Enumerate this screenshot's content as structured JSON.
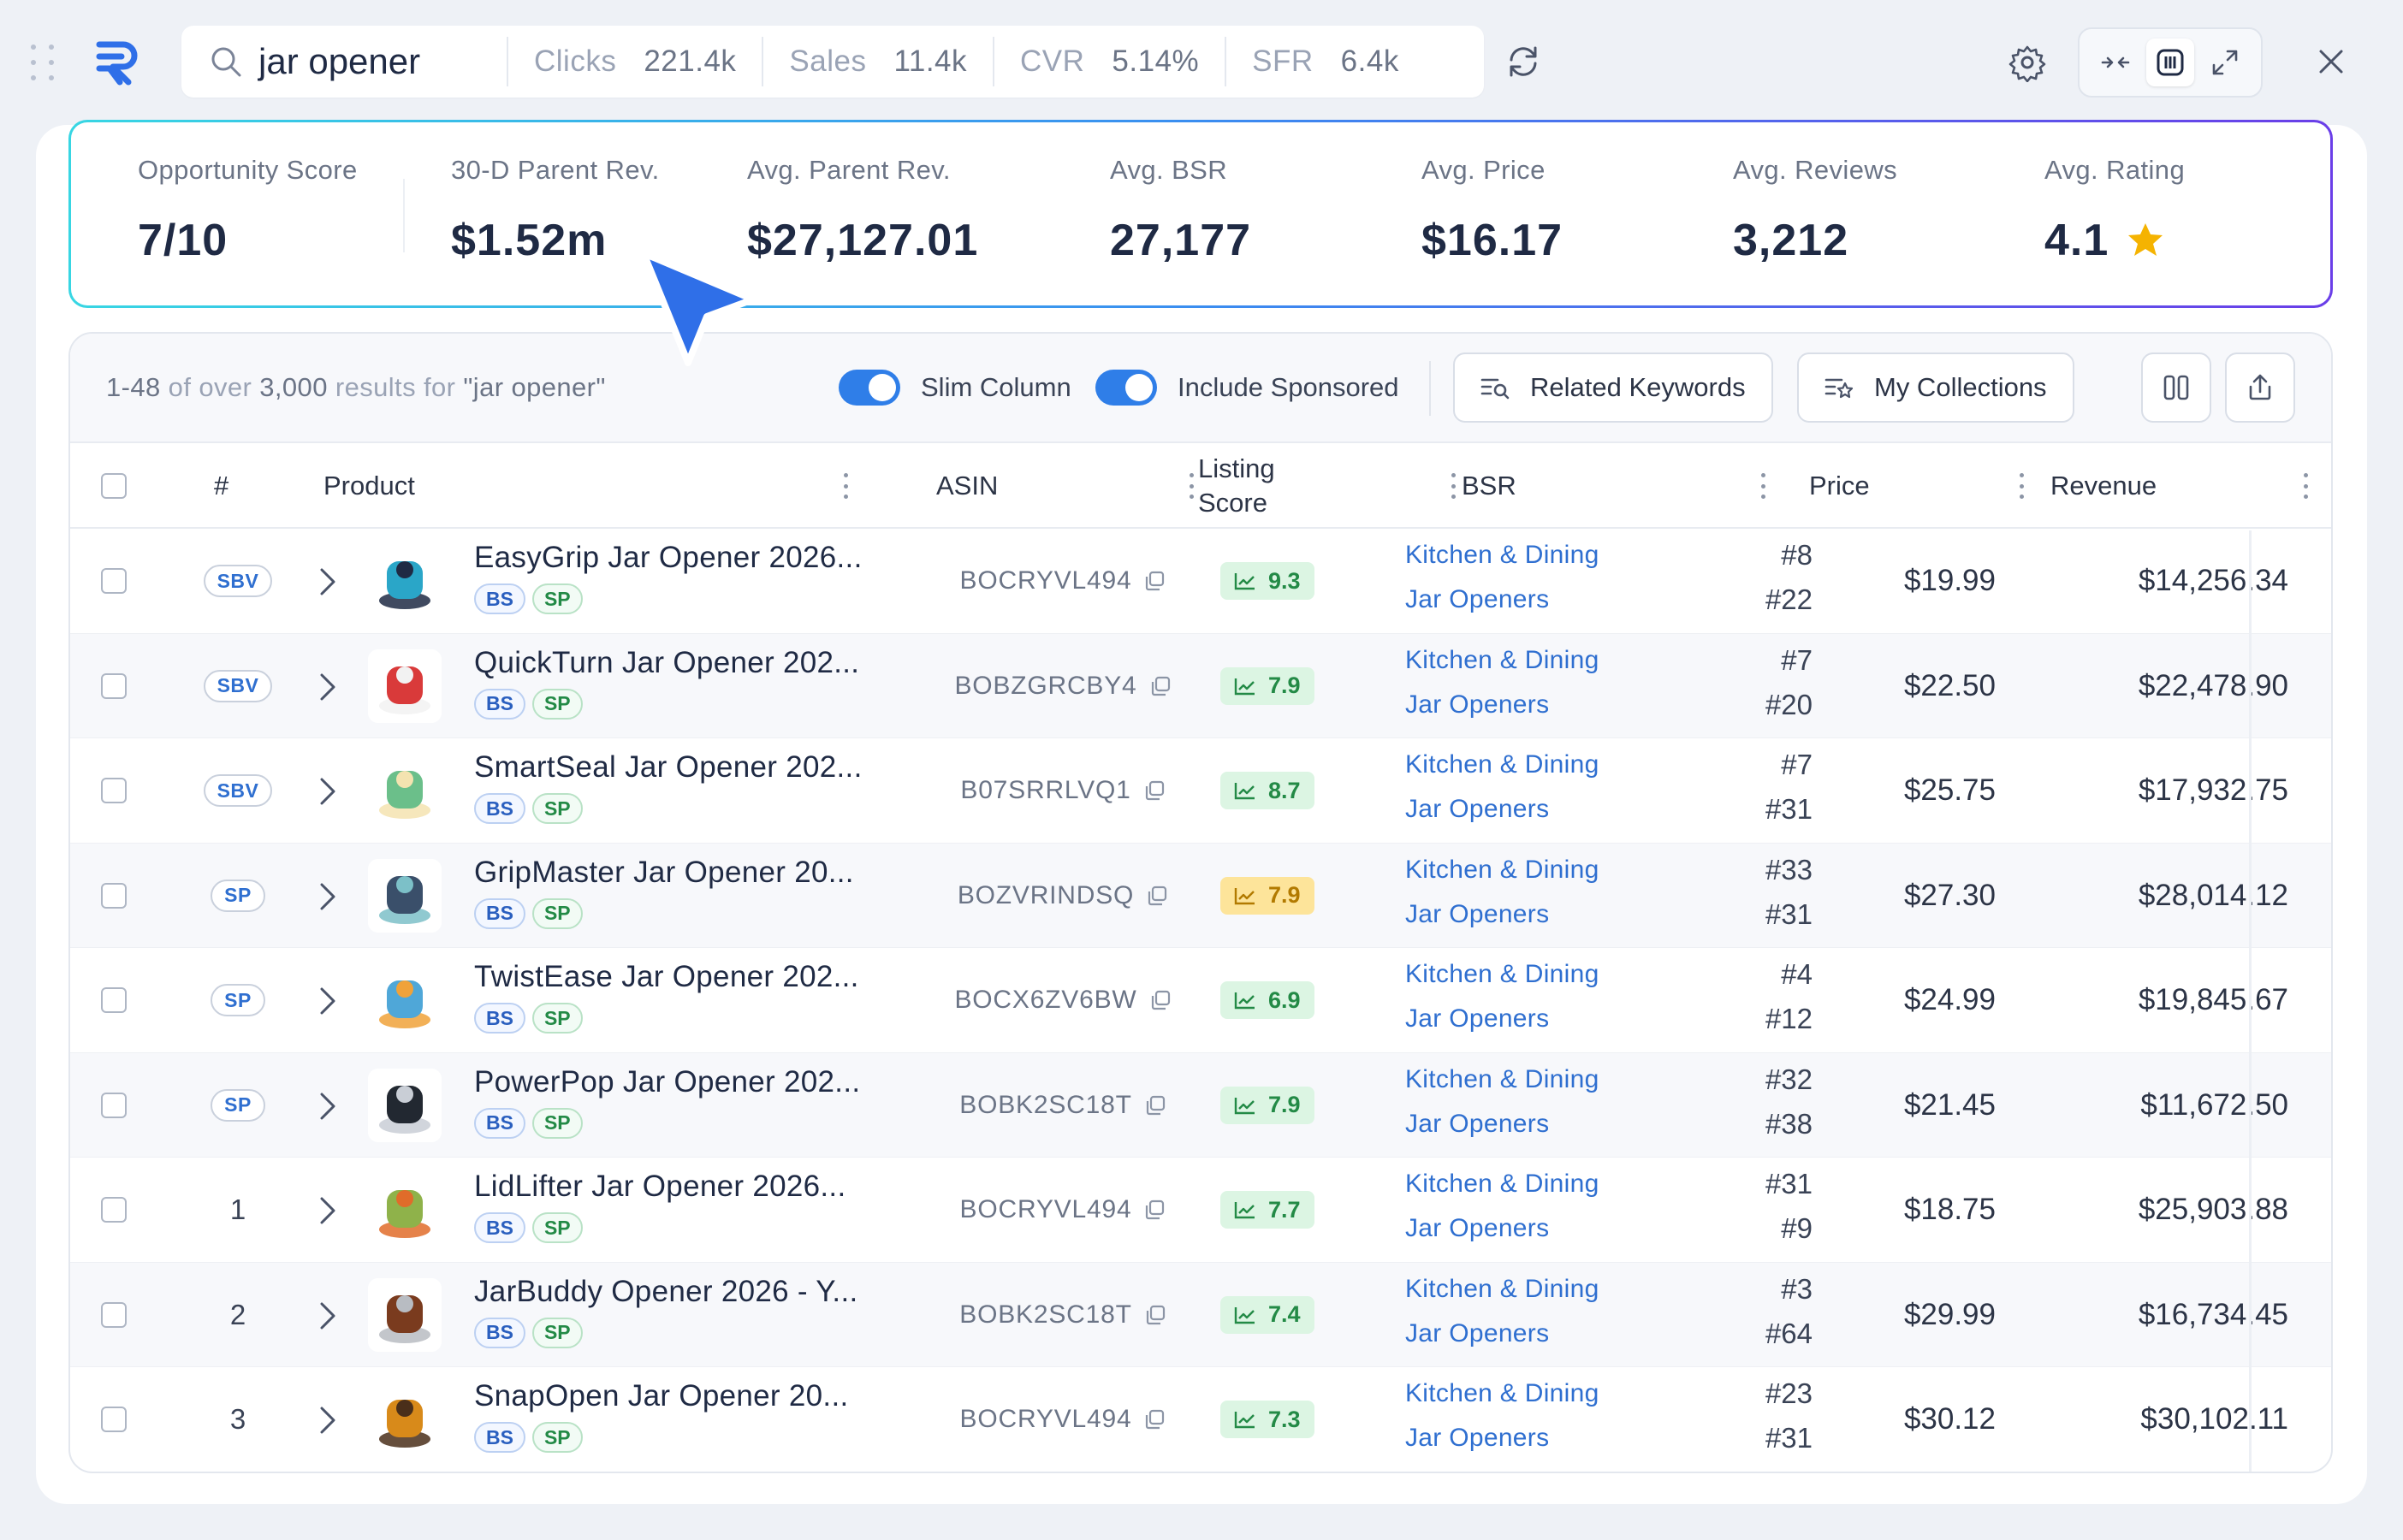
{
  "search": {
    "query": "jar opener"
  },
  "metrics": [
    {
      "label": "Clicks",
      "value": "221.4k"
    },
    {
      "label": "Sales",
      "value": "11.4k"
    },
    {
      "label": "CVR",
      "value": "5.14%"
    },
    {
      "label": "SFR",
      "value": "6.4k"
    }
  ],
  "stats": [
    {
      "label": "Opportunity Score",
      "value": "7/10"
    },
    {
      "label": "30-D Parent Rev.",
      "value": "$1.52m"
    },
    {
      "label": "Avg. Parent Rev.",
      "value": "$27,127.01"
    },
    {
      "label": "Avg. BSR",
      "value": "27,177"
    },
    {
      "label": "Avg. Price",
      "value": "$16.17"
    },
    {
      "label": "Avg. Reviews",
      "value": "3,212"
    },
    {
      "label": "Avg. Rating",
      "value": "4.1"
    }
  ],
  "toolbar": {
    "range": "1-48",
    "of_over": "of over",
    "total": "3,000",
    "results_for": "results for",
    "query_quoted": "\"jar opener\"",
    "slim_column": "Slim Column",
    "include_sponsored": "Include Sponsored",
    "related_keywords": "Related Keywords",
    "my_collections": "My Collections"
  },
  "columns": {
    "num": "#",
    "product": "Product",
    "asin": "ASIN",
    "listing_score_1": "Listing",
    "listing_score_2": "Score",
    "bsr": "BSR",
    "price": "Price",
    "revenue": "Revenue"
  },
  "colors": {
    "accent": "#2f7ee8",
    "score_green": "#dcf5e3",
    "score_yellow": "#fde49a",
    "star": "#f5b301"
  },
  "rows": [
    {
      "badge": "SBV",
      "name": "EasyGrip Jar Opener 2026...",
      "tags": [
        "BS",
        "SP"
      ],
      "asin": "BOCRYVL494",
      "score": "9.3",
      "score_color": "green",
      "cat1": "Kitchen & Dining",
      "rank1": "#8",
      "cat2": "Jar Openers",
      "rank2": "#22",
      "price": "$19.99",
      "revenue": "$14,256.34"
    },
    {
      "badge": "SBV",
      "name": "QuickTurn Jar Opener 202...",
      "tags": [
        "BS",
        "SP"
      ],
      "asin": "BOBZGRCBY4",
      "score": "7.9",
      "score_color": "green",
      "cat1": "Kitchen & Dining",
      "rank1": "#7",
      "cat2": "Jar Openers",
      "rank2": "#20",
      "price": "$22.50",
      "revenue": "$22,478.90"
    },
    {
      "badge": "SBV",
      "name": "SmartSeal Jar Opener 202...",
      "tags": [
        "BS",
        "SP"
      ],
      "asin": "B07SRRLVQ1",
      "score": "8.7",
      "score_color": "green",
      "cat1": "Kitchen & Dining",
      "rank1": "#7",
      "cat2": "Jar Openers",
      "rank2": "#31",
      "price": "$25.75",
      "revenue": "$17,932.75"
    },
    {
      "badge": "SP",
      "name": "GripMaster Jar Opener 20...",
      "tags": [
        "BS",
        "SP"
      ],
      "asin": "BOZVRINDSQ",
      "score": "7.9",
      "score_color": "yellow",
      "cat1": "Kitchen & Dining",
      "rank1": "#33",
      "cat2": "Jar Openers",
      "rank2": "#31",
      "price": "$27.30",
      "revenue": "$28,014.12"
    },
    {
      "badge": "SP",
      "name": "TwistEase Jar Opener 202...",
      "tags": [
        "BS",
        "SP"
      ],
      "asin": "BOCX6ZV6BW",
      "score": "6.9",
      "score_color": "green",
      "cat1": "Kitchen & Dining",
      "rank1": "#4",
      "cat2": "Jar Openers",
      "rank2": "#12",
      "price": "$24.99",
      "revenue": "$19,845.67"
    },
    {
      "badge": "SP",
      "name": "PowerPop Jar Opener 202...",
      "tags": [
        "BS",
        "SP"
      ],
      "asin": "BOBK2SC18T",
      "score": "7.9",
      "score_color": "green",
      "cat1": "Kitchen & Dining",
      "rank1": "#32",
      "cat2": "Jar Openers",
      "rank2": "#38",
      "price": "$21.45",
      "revenue": "$11,672.50"
    },
    {
      "badge": "1",
      "name": "LidLifter Jar Opener 2026...",
      "tags": [
        "BS",
        "SP"
      ],
      "asin": "BOCRYVL494",
      "score": "7.7",
      "score_color": "green",
      "cat1": "Kitchen & Dining",
      "rank1": "#31",
      "cat2": "Jar Openers",
      "rank2": "#9",
      "price": "$18.75",
      "revenue": "$25,903.88"
    },
    {
      "badge": "2",
      "name": "JarBuddy Opener 2026 - Y...",
      "tags": [
        "BS",
        "SP"
      ],
      "asin": "BOBK2SC18T",
      "score": "7.4",
      "score_color": "green",
      "cat1": "Kitchen & Dining",
      "rank1": "#3",
      "cat2": "Jar Openers",
      "rank2": "#64",
      "price": "$29.99",
      "revenue": "$16,734.45"
    },
    {
      "badge": "3",
      "name": "SnapOpen Jar Opener 20...",
      "tags": [
        "BS",
        "SP"
      ],
      "asin": "BOCRYVL494",
      "score": "7.3",
      "score_color": "green",
      "cat1": "Kitchen & Dining",
      "rank1": "#23",
      "cat2": "Jar Openers",
      "rank2": "#31",
      "price": "$30.12",
      "revenue": "$30,102.11"
    }
  ]
}
